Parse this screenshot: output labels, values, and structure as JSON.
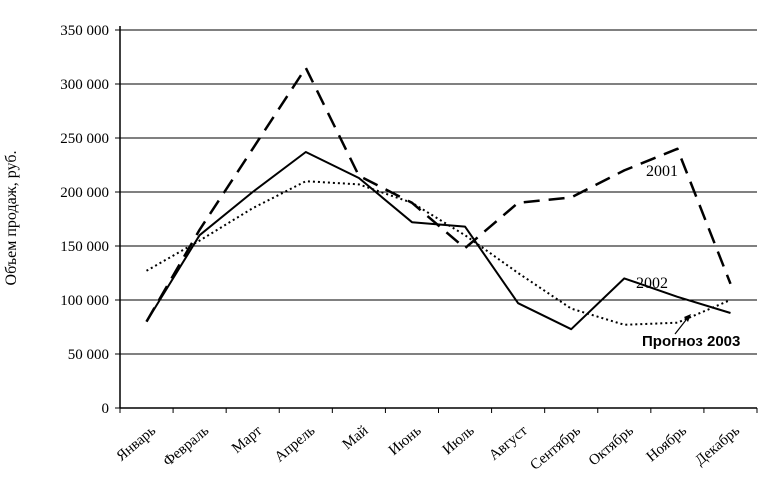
{
  "chart_data": {
    "type": "line",
    "title": "",
    "xlabel": "",
    "ylabel": "Объем продаж, руб.",
    "ylim": [
      0,
      350000
    ],
    "yticks": [
      "0",
      "50 000",
      "100 000",
      "150 000",
      "200 000",
      "250 000",
      "300 000",
      "350 000"
    ],
    "categories": [
      "Январь",
      "Февраль",
      "Март",
      "Апрель",
      "Май",
      "Июнь",
      "Июль",
      "Август",
      "Сентябрь",
      "Октябрь",
      "Ноябрь",
      "Декабрь"
    ],
    "grid": "horizontal",
    "series": [
      {
        "name": "2001",
        "style": "dashed",
        "values": [
          80000,
          165000,
          240000,
          315000,
          215000,
          190000,
          148000,
          190000,
          195000,
          220000,
          240000,
          115000
        ]
      },
      {
        "name": "2002",
        "style": "solid",
        "values": [
          80000,
          160000,
          200000,
          237000,
          213000,
          172000,
          168000,
          97000,
          73000,
          120000,
          103000,
          88000
        ]
      },
      {
        "name": "Прогноз 2003",
        "style": "dotted",
        "values": [
          127000,
          155000,
          185000,
          210000,
          207000,
          190000,
          160000,
          125000,
          92000,
          77000,
          79000,
          100000
        ]
      }
    ]
  }
}
